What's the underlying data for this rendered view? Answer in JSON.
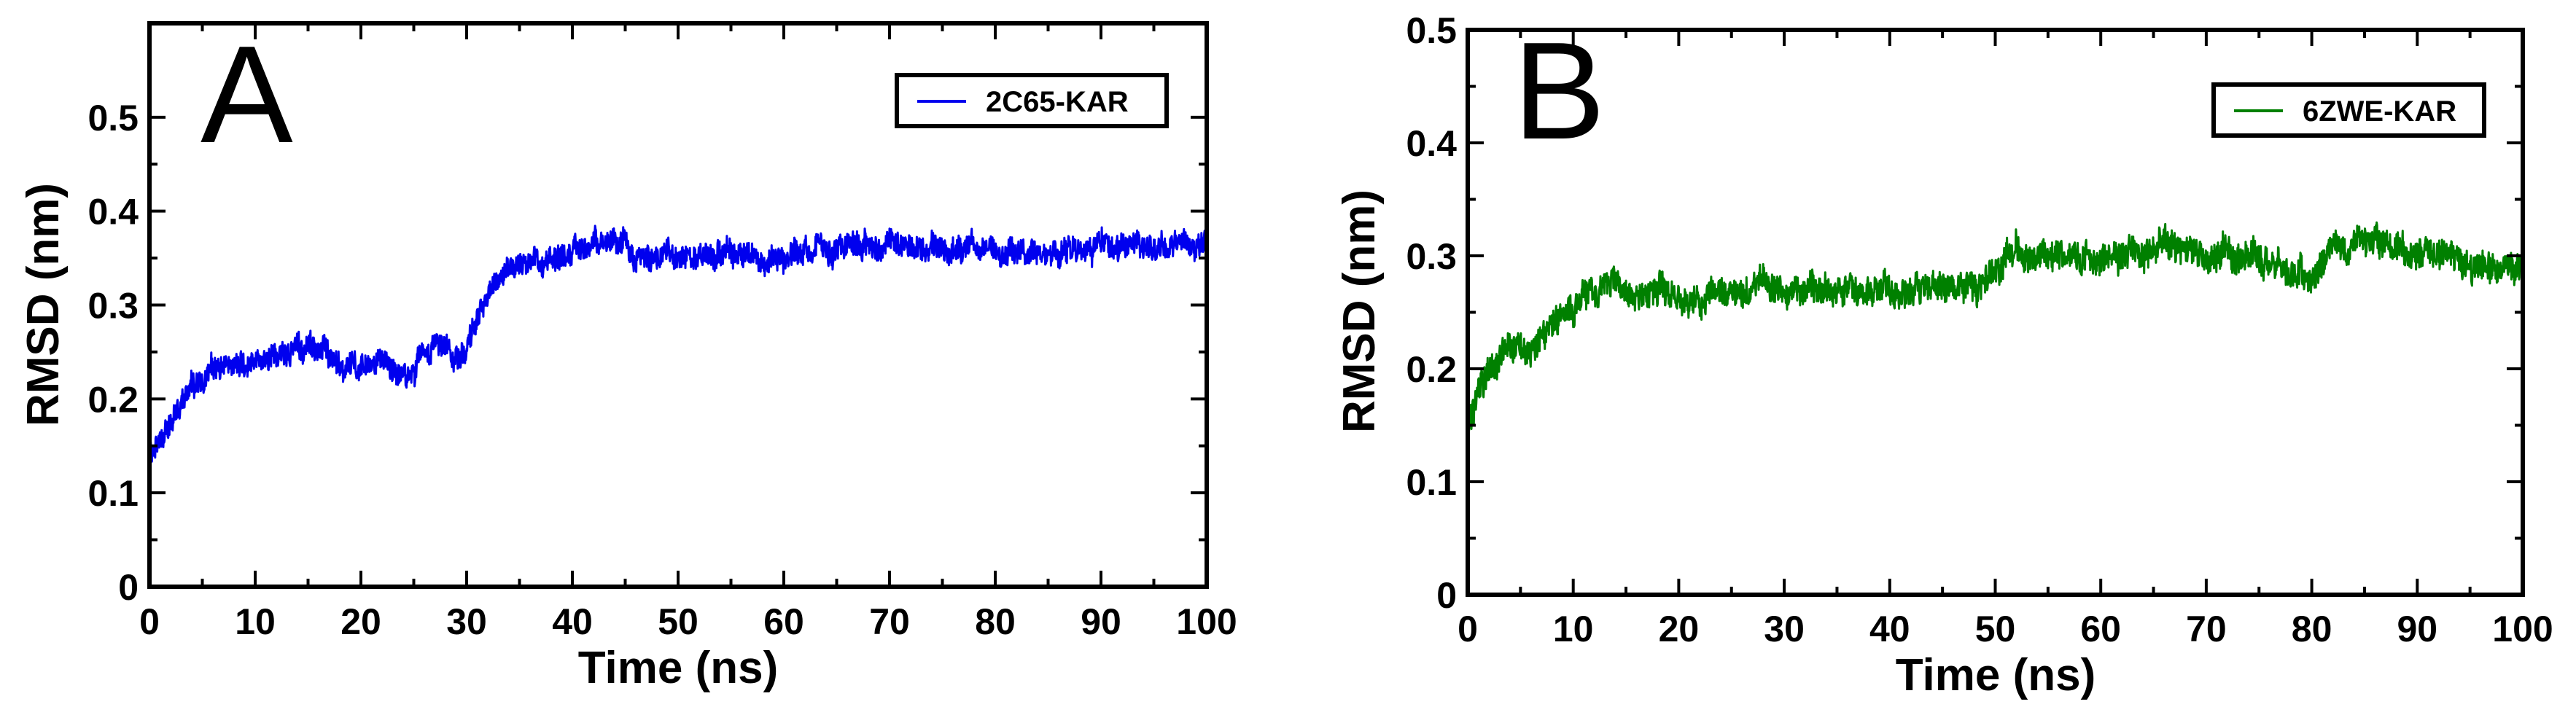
{
  "chart_data": [
    {
      "type": "line",
      "panel_label": "A",
      "xlabel": "Time (ns)",
      "ylabel": "RMSD (nm)",
      "xlim": [
        0,
        100
      ],
      "ylim": [
        0,
        0.6
      ],
      "xticks": [
        0,
        10,
        20,
        30,
        40,
        50,
        60,
        70,
        80,
        90,
        100
      ],
      "yticks": [
        0,
        0.1,
        0.2,
        0.3,
        0.4,
        0.5
      ],
      "ytick_labels": [
        "0",
        "0.1",
        "0.2",
        "0.3",
        "0.4",
        "0.5"
      ],
      "legend_position": "top-right",
      "series": [
        {
          "name": "2C65-KAR",
          "color": "#0000ee",
          "trend": [
            [
              0,
              0.14
            ],
            [
              1,
              0.16
            ],
            [
              2,
              0.17
            ],
            [
              3,
              0.19
            ],
            [
              4,
              0.215
            ],
            [
              5,
              0.225
            ],
            [
              7,
              0.235
            ],
            [
              9,
              0.24
            ],
            [
              12,
              0.25
            ],
            [
              14,
              0.255
            ],
            [
              16,
              0.25
            ],
            [
              18,
              0.24
            ],
            [
              20,
              0.235
            ],
            [
              22,
              0.235
            ],
            [
              24,
              0.225
            ],
            [
              25,
              0.225
            ],
            [
              26,
              0.255
            ],
            [
              27,
              0.26
            ],
            [
              28,
              0.255
            ],
            [
              29,
              0.245
            ],
            [
              30,
              0.26
            ],
            [
              31,
              0.29
            ],
            [
              32,
              0.31
            ],
            [
              34,
              0.335
            ],
            [
              36,
              0.345
            ],
            [
              38,
              0.35
            ],
            [
              40,
              0.355
            ],
            [
              42,
              0.36
            ],
            [
              44,
              0.365
            ],
            [
              45,
              0.375
            ],
            [
              46,
              0.355
            ],
            [
              48,
              0.35
            ],
            [
              50,
              0.35
            ],
            [
              55,
              0.355
            ],
            [
              60,
              0.35
            ],
            [
              65,
              0.36
            ],
            [
              70,
              0.365
            ],
            [
              75,
              0.36
            ],
            [
              80,
              0.355
            ],
            [
              85,
              0.355
            ],
            [
              90,
              0.365
            ],
            [
              95,
              0.36
            ],
            [
              100,
              0.365
            ]
          ]
        }
      ]
    },
    {
      "type": "line",
      "panel_label": "B",
      "xlabel": "Time (ns)",
      "ylabel": "RMSD (nm)",
      "xlim": [
        0,
        100
      ],
      "ylim": [
        0,
        0.5
      ],
      "xticks": [
        0,
        10,
        20,
        30,
        40,
        50,
        60,
        70,
        80,
        90,
        100
      ],
      "yticks": [
        0,
        0.1,
        0.2,
        0.3,
        0.4,
        0.5
      ],
      "ytick_labels": [
        "0",
        "0.1",
        "0.2",
        "0.3",
        "0.4",
        "0.5"
      ],
      "legend_position": "top-right",
      "series": [
        {
          "name": "6ZWE-KAR",
          "color": "#008000",
          "trend": [
            [
              0,
              0.14
            ],
            [
              1,
              0.19
            ],
            [
              2,
              0.2
            ],
            [
              4,
              0.215
            ],
            [
              6,
              0.22
            ],
            [
              8,
              0.24
            ],
            [
              10,
              0.255
            ],
            [
              12,
              0.265
            ],
            [
              15,
              0.27
            ],
            [
              18,
              0.265
            ],
            [
              20,
              0.26
            ],
            [
              22,
              0.26
            ],
            [
              25,
              0.27
            ],
            [
              28,
              0.275
            ],
            [
              30,
              0.27
            ],
            [
              33,
              0.27
            ],
            [
              36,
              0.265
            ],
            [
              40,
              0.27
            ],
            [
              43,
              0.27
            ],
            [
              46,
              0.275
            ],
            [
              48,
              0.27
            ],
            [
              50,
              0.29
            ],
            [
              52,
              0.305
            ],
            [
              55,
              0.3
            ],
            [
              58,
              0.295
            ],
            [
              60,
              0.295
            ],
            [
              63,
              0.3
            ],
            [
              66,
              0.31
            ],
            [
              68,
              0.305
            ],
            [
              70,
              0.3
            ],
            [
              73,
              0.3
            ],
            [
              76,
              0.295
            ],
            [
              78,
              0.28
            ],
            [
              80,
              0.29
            ],
            [
              82,
              0.305
            ],
            [
              85,
              0.315
            ],
            [
              88,
              0.31
            ],
            [
              90,
              0.3
            ],
            [
              93,
              0.295
            ],
            [
              96,
              0.29
            ],
            [
              100,
              0.285
            ]
          ]
        }
      ]
    }
  ]
}
